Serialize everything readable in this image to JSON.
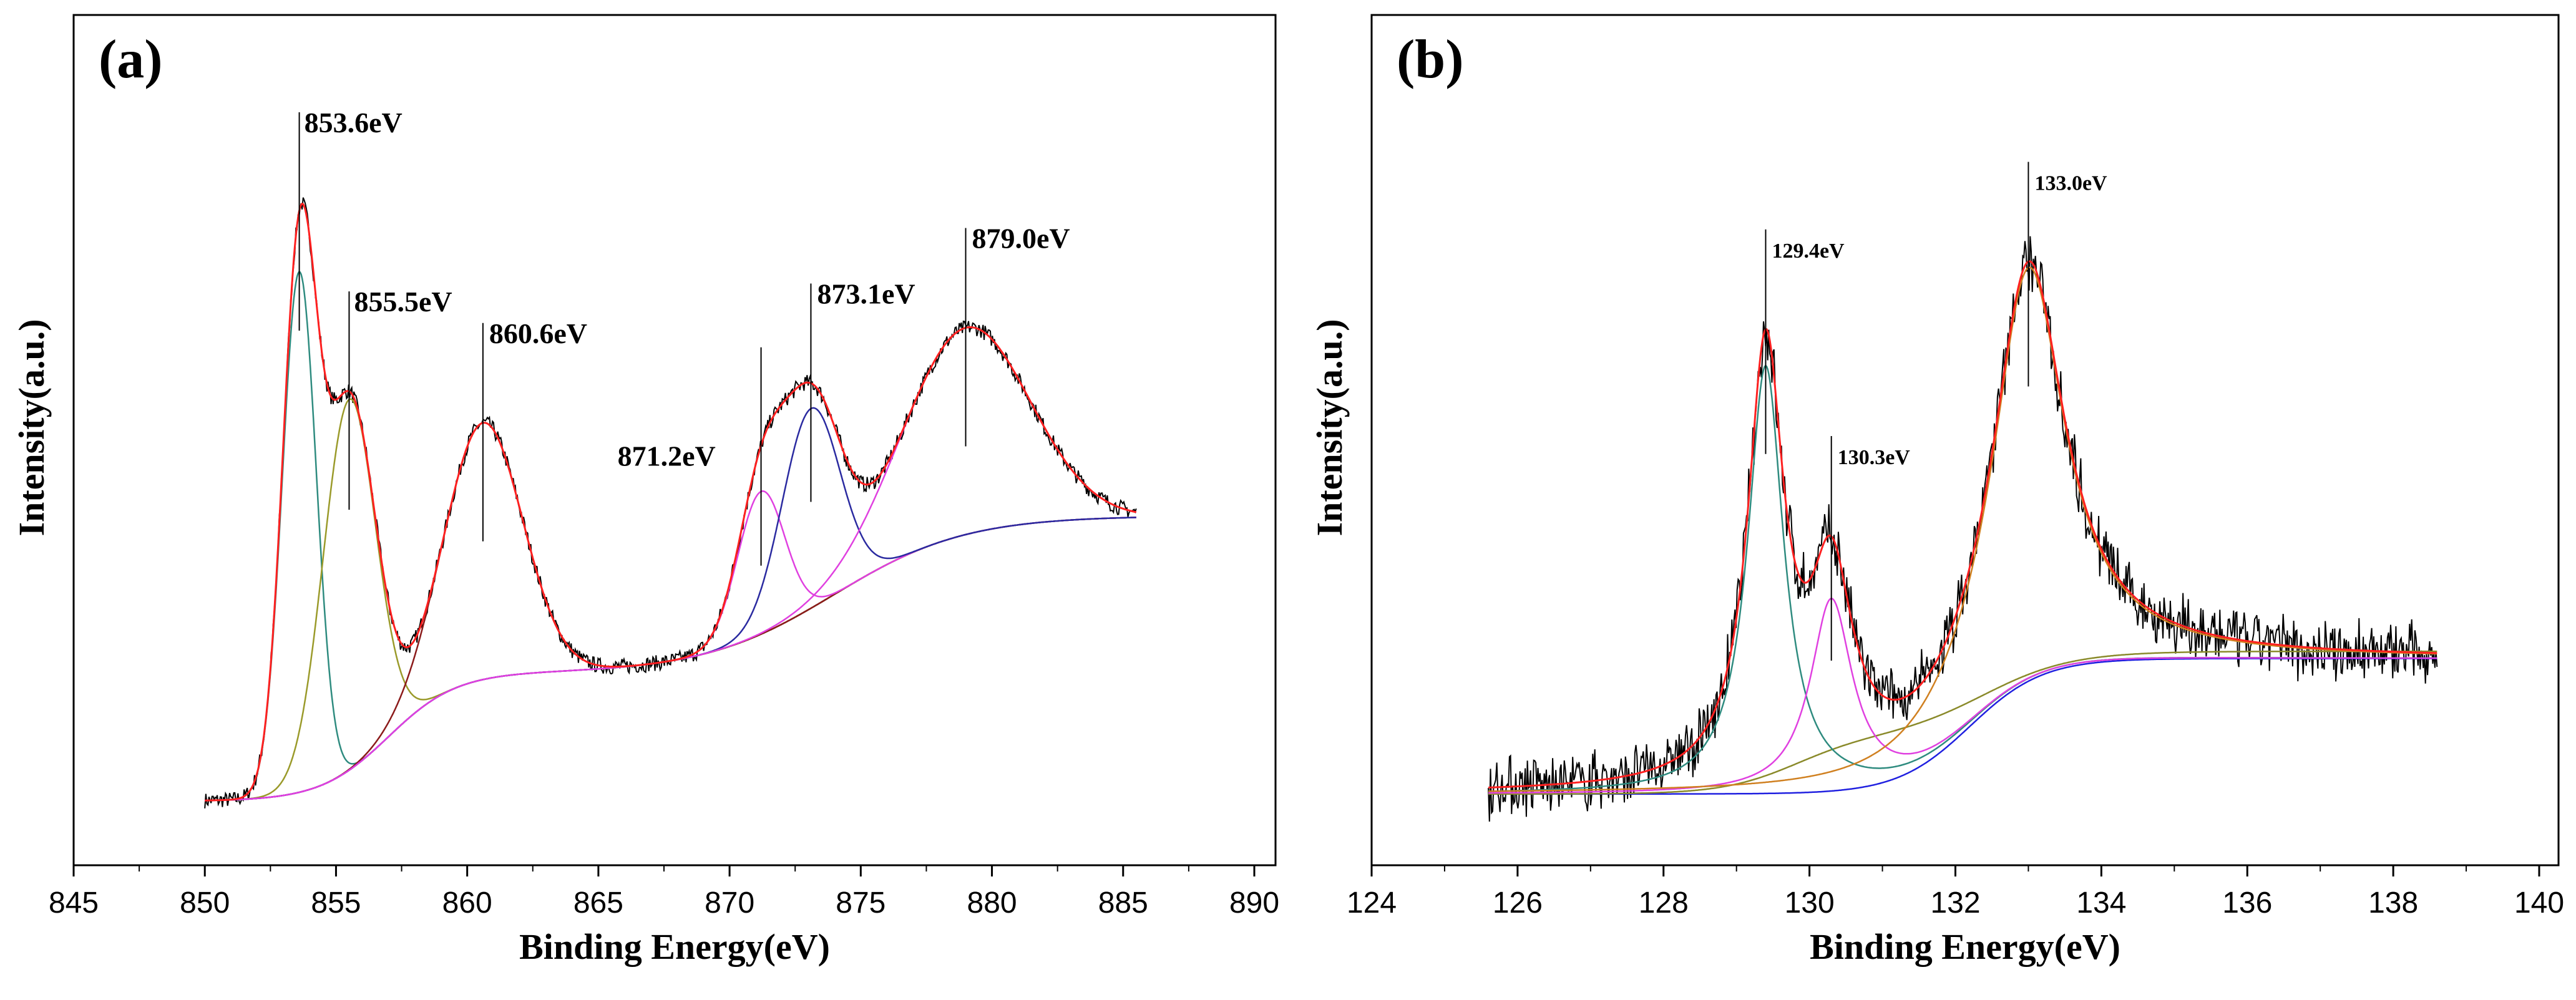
{
  "chart_data": [
    {
      "type": "line",
      "panel_label": "(a)",
      "xlabel": "Binding Energy(eV)",
      "ylabel": "Intensity(a.u.)",
      "xlim": [
        845,
        890
      ],
      "ylim": [
        0,
        100
      ],
      "xticks": [
        "845",
        "850",
        "855",
        "860",
        "865",
        "870",
        "875",
        "880",
        "885",
        "890"
      ],
      "peak_labels": [
        "853.6eV",
        "855.5eV",
        "860.6eV",
        "871.2eV",
        "873.1eV",
        "879.0eV"
      ],
      "peak_positions": [
        853.6,
        855.5,
        860.6,
        871.2,
        873.1,
        879.0
      ],
      "components": [
        {
          "name": "peak-853.6",
          "color": "#2e8b7f",
          "center": 853.6,
          "width": 0.65,
          "amp": 73
        },
        {
          "name": "peak-855.5",
          "color": "#9a9a2a",
          "center": 855.5,
          "width": 1.0,
          "amp": 52
        },
        {
          "name": "peak-860.6",
          "color": "#8b1a1a",
          "center": 860.6,
          "width": 1.5,
          "amp": 36
        },
        {
          "name": "peak-871.2",
          "color": "#e040e0",
          "center": 871.2,
          "width": 0.9,
          "amp": 20
        },
        {
          "name": "peak-873.1",
          "color": "#2a2aa0",
          "center": 873.1,
          "width": 1.1,
          "amp": 28
        },
        {
          "name": "peak-879.0",
          "color": "#e040e0",
          "center": 879.0,
          "width": 2.4,
          "amp": 29
        }
      ],
      "colors": {
        "raw": "#000000",
        "envelope": "#ff2020",
        "background": "#e040a0"
      }
    },
    {
      "type": "line",
      "panel_label": "(b)",
      "xlabel": "Binding Energy(eV)",
      "ylabel": "Intensity(a.u.)",
      "xlim": [
        124,
        140
      ],
      "ylim": [
        0,
        100
      ],
      "xticks": [
        "124",
        "126",
        "128",
        "130",
        "132",
        "134",
        "136",
        "138",
        "140"
      ],
      "peak_labels": [
        "129.4eV",
        "130.3eV",
        "133.0eV"
      ],
      "peak_positions": [
        129.4,
        130.3,
        133.0
      ],
      "components": [
        {
          "name": "peak-129.4",
          "color": "#2e8b7f",
          "center": 129.4,
          "width": 0.3,
          "amp": 60
        },
        {
          "name": "peak-130.3",
          "color": "#e040e0",
          "center": 130.3,
          "width": 0.35,
          "amp": 27
        },
        {
          "name": "peak-133.0",
          "color": "#d08020",
          "center": 133.0,
          "width": 0.6,
          "amp": 58
        }
      ],
      "colors": {
        "raw": "#000000",
        "envelope": "#ff2020",
        "background": "#2020e0",
        "shirley": "#8a8a2a"
      }
    }
  ]
}
